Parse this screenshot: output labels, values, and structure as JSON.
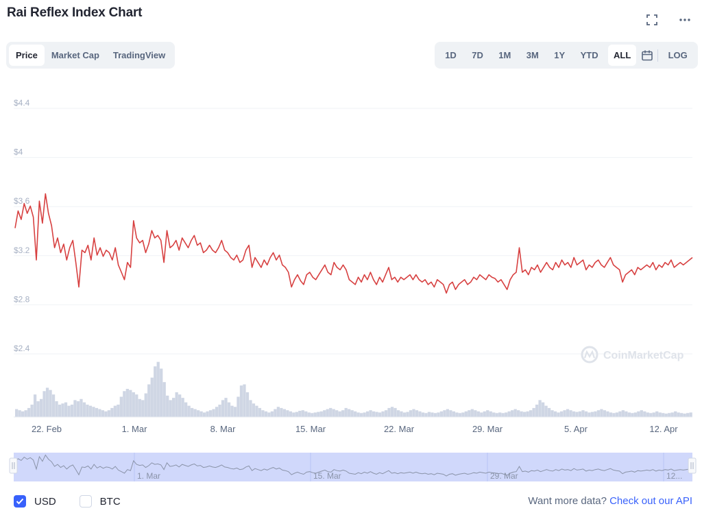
{
  "header": {
    "title": "Rai Reflex Index Chart"
  },
  "icons": {
    "fullscreen": "fullscreen-icon",
    "more": "more-icon",
    "calendar": "calendar-icon",
    "logo": "coinmarketcap-logo-icon"
  },
  "tabs": [
    {
      "label": "Price",
      "active": true
    },
    {
      "label": "Market Cap",
      "active": false
    },
    {
      "label": "TradingView",
      "active": false
    }
  ],
  "ranges": [
    {
      "label": "1D",
      "active": false
    },
    {
      "label": "7D",
      "active": false
    },
    {
      "label": "1M",
      "active": false
    },
    {
      "label": "3M",
      "active": false
    },
    {
      "label": "1Y",
      "active": false
    },
    {
      "label": "YTD",
      "active": false
    },
    {
      "label": "ALL",
      "active": true
    }
  ],
  "log_label": "LOG",
  "watermark": "CoinMarketCap",
  "currency": {
    "usd_label": "USD",
    "usd_checked": true,
    "btc_label": "BTC",
    "btc_checked": false
  },
  "footer": {
    "prompt": "Want more data?",
    "link": "Check out our API"
  },
  "colors": {
    "line": "#d74040",
    "volume": "#cfd6e4",
    "navigator_fill": "#d0d8fb",
    "accent": "#3861fb",
    "grid": "#eff2f5"
  },
  "chart_data": {
    "type": "line",
    "series": [
      {
        "values": [
          3.38,
          3.52,
          3.45,
          3.58,
          3.5,
          3.56,
          3.47,
          3.12,
          3.6,
          3.42,
          3.66,
          3.5,
          3.4,
          3.22,
          3.3,
          3.18,
          3.25,
          3.12,
          3.22,
          3.28,
          3.1,
          2.9,
          3.2,
          3.18,
          3.24,
          3.12,
          3.3,
          3.16,
          3.22,
          3.15,
          3.2,
          3.18,
          3.12,
          3.22,
          3.08,
          3.02,
          2.96,
          3.1,
          3.06,
          3.44,
          3.3,
          3.26,
          3.28,
          3.18,
          3.25,
          3.36,
          3.3,
          3.32,
          3.28,
          3.1,
          3.36,
          3.22,
          3.24,
          3.28,
          3.2,
          3.3,
          3.26,
          3.22,
          3.28,
          3.32,
          3.24,
          3.26,
          3.18,
          3.2,
          3.24,
          3.2,
          3.18,
          3.22,
          3.28,
          3.2,
          3.18,
          3.14,
          3.12,
          3.16,
          3.1,
          3.12,
          3.2,
          3.24,
          3.06,
          3.14,
          3.1,
          3.06,
          3.12,
          3.08,
          3.14,
          3.18,
          3.12,
          3.16,
          3.08,
          3.06,
          3.02,
          2.9,
          2.96,
          3.0,
          2.95,
          2.92,
          3.0,
          3.02,
          2.98,
          2.96,
          3.0,
          3.04,
          3.08,
          3.02,
          3.0,
          3.1,
          3.06,
          3.04,
          3.08,
          3.04,
          2.96,
          2.94,
          2.92,
          2.98,
          2.94,
          3.0,
          2.96,
          3.02,
          2.96,
          2.92,
          2.98,
          2.94,
          3.0,
          3.06,
          2.96,
          2.98,
          2.94,
          2.98,
          2.96,
          2.98,
          3.0,
          2.96,
          3.0,
          2.96,
          2.94,
          2.96,
          2.92,
          2.94,
          2.9,
          2.96,
          2.94,
          2.92,
          2.85,
          2.92,
          2.94,
          2.88,
          2.92,
          2.94,
          2.96,
          2.92,
          2.94,
          2.98,
          2.96,
          3.0,
          2.98,
          2.96,
          3.0,
          2.98,
          2.97,
          2.94,
          2.96,
          2.92,
          2.88,
          2.96,
          3.0,
          3.02,
          3.22,
          3.02,
          3.04,
          3.0,
          3.06,
          3.04,
          3.08,
          3.02,
          3.06,
          3.1,
          3.06,
          3.04,
          3.1,
          3.06,
          3.12,
          3.08,
          3.1,
          3.06,
          3.14,
          3.08,
          3.1,
          3.12,
          3.04,
          3.08,
          3.06,
          3.1,
          3.12,
          3.08,
          3.06,
          3.1,
          3.14,
          3.08,
          3.06,
          3.04,
          2.94,
          3.0,
          3.02,
          3.04,
          3.0,
          3.06,
          3.04,
          3.06,
          3.08,
          3.06,
          3.1,
          3.04,
          3.08,
          3.06,
          3.1,
          3.08,
          3.12,
          3.06,
          3.08,
          3.1,
          3.08,
          3.1,
          3.12,
          3.14
        ]
      }
    ],
    "volume": [
      0.14,
      0.12,
      0.1,
      0.12,
      0.16,
      0.22,
      0.4,
      0.28,
      0.32,
      0.46,
      0.52,
      0.48,
      0.4,
      0.28,
      0.22,
      0.24,
      0.26,
      0.2,
      0.22,
      0.3,
      0.28,
      0.32,
      0.26,
      0.22,
      0.2,
      0.18,
      0.16,
      0.14,
      0.12,
      0.1,
      0.12,
      0.16,
      0.2,
      0.22,
      0.36,
      0.46,
      0.5,
      0.48,
      0.44,
      0.4,
      0.32,
      0.3,
      0.42,
      0.58,
      0.7,
      0.9,
      0.98,
      0.86,
      0.62,
      0.38,
      0.3,
      0.34,
      0.44,
      0.4,
      0.34,
      0.26,
      0.2,
      0.16,
      0.14,
      0.12,
      0.1,
      0.08,
      0.1,
      0.12,
      0.14,
      0.18,
      0.22,
      0.3,
      0.34,
      0.26,
      0.2,
      0.18,
      0.36,
      0.56,
      0.58,
      0.44,
      0.3,
      0.24,
      0.2,
      0.16,
      0.12,
      0.1,
      0.08,
      0.1,
      0.14,
      0.18,
      0.16,
      0.14,
      0.12,
      0.1,
      0.08,
      0.09,
      0.11,
      0.12,
      0.1,
      0.08,
      0.07,
      0.08,
      0.09,
      0.1,
      0.12,
      0.14,
      0.16,
      0.14,
      0.12,
      0.1,
      0.12,
      0.16,
      0.14,
      0.12,
      0.1,
      0.08,
      0.07,
      0.08,
      0.1,
      0.12,
      0.1,
      0.09,
      0.08,
      0.1,
      0.12,
      0.16,
      0.18,
      0.16,
      0.12,
      0.1,
      0.08,
      0.09,
      0.12,
      0.14,
      0.12,
      0.1,
      0.08,
      0.07,
      0.09,
      0.08,
      0.07,
      0.08,
      0.1,
      0.12,
      0.14,
      0.12,
      0.1,
      0.08,
      0.07,
      0.08,
      0.1,
      0.12,
      0.14,
      0.12,
      0.1,
      0.08,
      0.1,
      0.12,
      0.1,
      0.08,
      0.07,
      0.08,
      0.07,
      0.08,
      0.1,
      0.12,
      0.14,
      0.12,
      0.1,
      0.09,
      0.1,
      0.12,
      0.16,
      0.22,
      0.3,
      0.26,
      0.2,
      0.16,
      0.12,
      0.1,
      0.08,
      0.1,
      0.12,
      0.14,
      0.12,
      0.1,
      0.09,
      0.1,
      0.12,
      0.1,
      0.08,
      0.09,
      0.1,
      0.12,
      0.14,
      0.12,
      0.1,
      0.08,
      0.07,
      0.08,
      0.1,
      0.12,
      0.1,
      0.08,
      0.07,
      0.08,
      0.1,
      0.12,
      0.1,
      0.08,
      0.07,
      0.08,
      0.1,
      0.08,
      0.07,
      0.06,
      0.07,
      0.08,
      0.1,
      0.08,
      0.07,
      0.06,
      0.07,
      0.08
    ],
    "x_ticks": [
      "22. Feb",
      "1. Mar",
      "8. Mar",
      "15. Mar",
      "22. Mar",
      "29. Mar",
      "5. Apr",
      "12. Apr"
    ],
    "y_ticks": [
      "$2.4",
      "$2.8",
      "$3.2",
      "$3.6",
      "$4",
      "$4.4"
    ],
    "y_tick_values": [
      2.4,
      2.8,
      3.2,
      3.6,
      4.0,
      4.4
    ],
    "ylim": [
      2.4,
      4.4
    ],
    "navigator_ticks": [
      "1. Mar",
      "15. Mar",
      "29. Mar",
      "12..."
    ],
    "grid": true,
    "legend": "none"
  }
}
